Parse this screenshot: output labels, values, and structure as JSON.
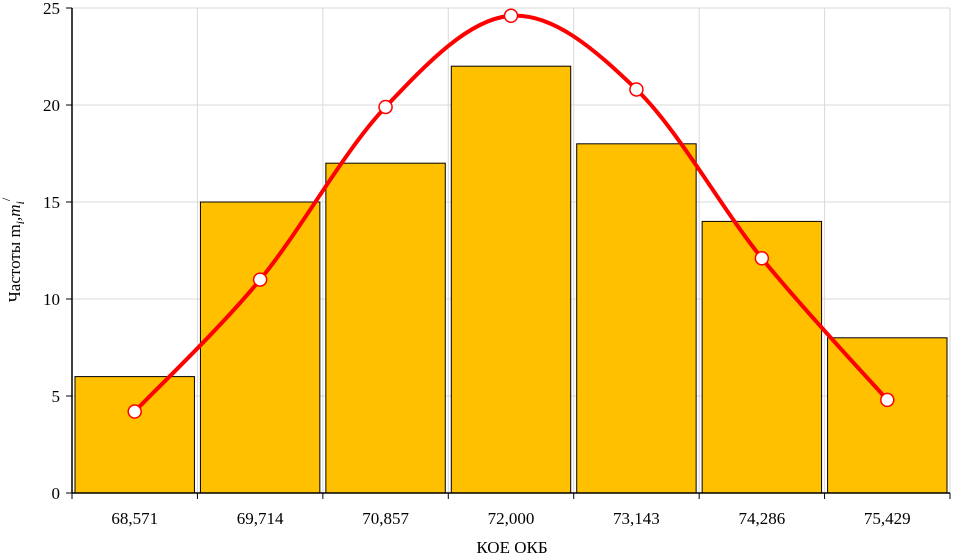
{
  "chart_data": {
    "type": "bar",
    "categories": [
      "68,571",
      "69,714",
      "70,857",
      "72,000",
      "73,143",
      "74,286",
      "75,429"
    ],
    "series": [
      {
        "type": "bar",
        "values": [
          6,
          15,
          17,
          22,
          18,
          14,
          8
        ],
        "color": "#FFC000"
      },
      {
        "type": "line",
        "values": [
          4.2,
          11.0,
          19.9,
          24.6,
          20.8,
          12.1,
          4.8
        ],
        "color": "#FF0000"
      }
    ],
    "xlabel": "КОЕ ОКБ",
    "ylabel": "Частоты m",
    "ylabel_sub1": "i",
    "ylabel_sep": ",m",
    "ylabel_sub2": "i",
    "ylabel_sup": "/",
    "ylim": [
      0,
      25
    ],
    "yticks": [
      0,
      5,
      10,
      15,
      20,
      25
    ],
    "grid": true
  }
}
